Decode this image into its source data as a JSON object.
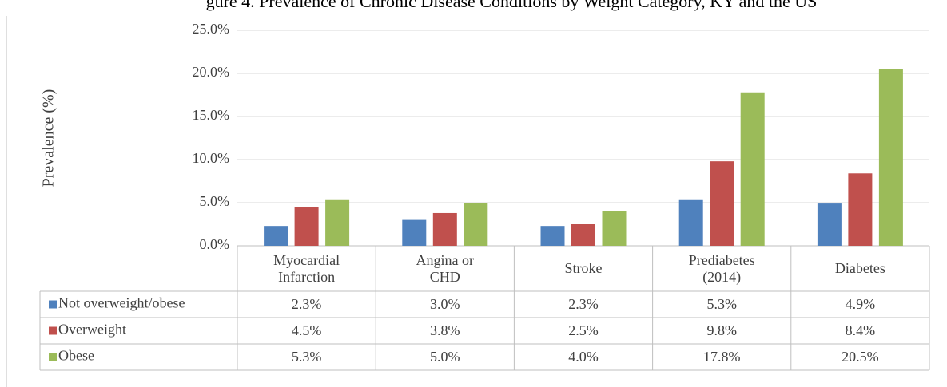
{
  "chart_data": {
    "type": "bar",
    "title": "gure 4. Prevalence of Chronic Disease Conditions by Weight Category, KY and the US",
    "y_label": "Prevalence (%)",
    "categories": [
      "Myocardial Infarction",
      "Angina or CHD",
      "Stroke",
      "Prediabetes (2014)",
      "Diabetes"
    ],
    "series": [
      {
        "name": "Not overweight/obese",
        "color": "#4f81bd",
        "values": [
          2.3,
          3.0,
          2.3,
          5.3,
          4.9
        ],
        "value_labels": [
          "2.3%",
          "3.0%",
          "2.3%",
          "5.3%",
          "4.9%"
        ]
      },
      {
        "name": "Overweight",
        "color": "#c0504d",
        "values": [
          4.5,
          3.8,
          2.5,
          9.8,
          8.4
        ],
        "value_labels": [
          "4.5%",
          "3.8%",
          "2.5%",
          "9.8%",
          "8.4%"
        ]
      },
      {
        "name": "Obese",
        "color": "#9bbb59",
        "values": [
          5.3,
          5.0,
          4.0,
          17.8,
          20.5
        ],
        "value_labels": [
          "5.3%",
          "5.0%",
          "4.0%",
          "17.8%",
          "20.5%"
        ]
      }
    ],
    "ylim": [
      0,
      25
    ],
    "yticks": [
      {
        "value": 0,
        "label": "0.0%"
      },
      {
        "value": 5,
        "label": "5.0%"
      },
      {
        "value": 10,
        "label": "10.0%"
      },
      {
        "value": 15,
        "label": "15.0%"
      },
      {
        "value": 20,
        "label": "20.0%"
      },
      {
        "value": 25,
        "label": "25.0%"
      }
    ],
    "grid": true
  }
}
